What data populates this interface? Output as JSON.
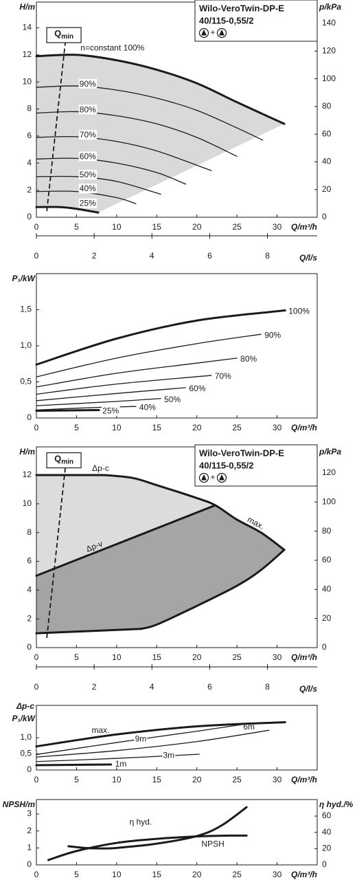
{
  "chart_data": [
    {
      "type": "line",
      "title": [
        "Wilo-VeroTwin-DP-E",
        "40/115-0,55/2"
      ],
      "symbol_joiner": "+",
      "xlabel": "Q/m³/h",
      "ylabel": "H/m",
      "y2label": "p/kPa",
      "xlim": [
        0,
        35
      ],
      "xticks": [
        0,
        5,
        10,
        15,
        20,
        25,
        30
      ],
      "ylim": [
        0,
        15.9
      ],
      "yticks": [
        0,
        2,
        4,
        6,
        8,
        10,
        12,
        14
      ],
      "y2lim": [
        0,
        155.4
      ],
      "y2ticks": [
        0,
        20,
        40,
        60,
        80,
        100,
        120,
        140
      ],
      "shade_color": "#d9d9d9",
      "qmin": {
        "label": "Q",
        "label_sub": "min",
        "x": [
          1.3,
          3.6
        ],
        "values": [
          0.45,
          12.9
        ]
      },
      "series": [
        {
          "name": "n=constant 100%",
          "color": "#1a1a1a",
          "line_width": 3,
          "x": [
            0,
            5,
            10,
            15,
            20,
            25,
            30.9
          ],
          "values": [
            11.9,
            12.0,
            11.6,
            10.9,
            9.9,
            8.5,
            6.9
          ]
        },
        {
          "name": "90%",
          "color": "#1a1a1a",
          "line_width": 1.3,
          "x": [
            0,
            5,
            10,
            15,
            20,
            25,
            28.2
          ],
          "values": [
            9.6,
            9.7,
            9.4,
            8.8,
            7.9,
            6.6,
            5.7
          ]
        },
        {
          "name": "80%",
          "color": "#1a1a1a",
          "line_width": 1.3,
          "x": [
            0,
            5,
            10,
            15,
            20,
            25
          ],
          "values": [
            7.7,
            7.8,
            7.5,
            6.9,
            5.9,
            4.5
          ]
        },
        {
          "name": "70%",
          "color": "#1a1a1a",
          "line_width": 1.3,
          "x": [
            0,
            5,
            10,
            15,
            21.8
          ],
          "values": [
            5.9,
            5.95,
            5.6,
            4.9,
            3.45
          ]
        },
        {
          "name": "60%",
          "color": "#1a1a1a",
          "line_width": 1.3,
          "x": [
            0,
            5,
            10,
            15,
            18.6
          ],
          "values": [
            4.3,
            4.35,
            4.0,
            3.3,
            2.45
          ]
        },
        {
          "name": "50%",
          "color": "#1a1a1a",
          "line_width": 1.3,
          "x": [
            0,
            5,
            10,
            15.5
          ],
          "values": [
            3.0,
            3.0,
            2.65,
            1.7
          ]
        },
        {
          "name": "40%",
          "color": "#1a1a1a",
          "line_width": 1.3,
          "x": [
            0,
            5,
            10,
            12.4
          ],
          "values": [
            1.9,
            1.9,
            1.45,
            1.0
          ]
        },
        {
          "name": "25%",
          "color": "#1a1a1a",
          "line_width": 3,
          "x": [
            0,
            3,
            5,
            7.7
          ],
          "values": [
            0.75,
            0.75,
            0.62,
            0.35
          ]
        }
      ]
    },
    {
      "type": "axis",
      "xlabel": "Q/l/s",
      "xlim": [
        0,
        9.722
      ],
      "xticks": [
        0,
        2,
        4,
        6,
        8
      ]
    },
    {
      "type": "line",
      "xlabel": "Q/m³/h",
      "ylabel": "P₁/kW",
      "xlim": [
        0,
        35
      ],
      "xticks": [
        0,
        5,
        10,
        15,
        20,
        25,
        30
      ],
      "ylim": [
        0,
        2.0
      ],
      "yticks": [
        0,
        {
          "value": 0.5,
          "label": "0,5"
        },
        {
          "value": 1,
          "label": "1,0"
        },
        {
          "value": 1.5,
          "label": "1,5"
        }
      ],
      "series": [
        {
          "name": "100%",
          "color": "#1a1a1a",
          "line_width": 3,
          "x": [
            0,
            10,
            20,
            31
          ],
          "values": [
            0.74,
            1.1,
            1.35,
            1.49
          ]
        },
        {
          "name": "90%",
          "color": "#1a1a1a",
          "line_width": 1.3,
          "x": [
            0,
            10,
            20,
            28
          ],
          "values": [
            0.57,
            0.83,
            1.03,
            1.16
          ]
        },
        {
          "name": "80%",
          "color": "#1a1a1a",
          "line_width": 1.3,
          "x": [
            0,
            10,
            20,
            25
          ],
          "values": [
            0.43,
            0.62,
            0.76,
            0.83
          ]
        },
        {
          "name": "70%",
          "color": "#1a1a1a",
          "line_width": 1.3,
          "x": [
            0,
            10,
            21.8
          ],
          "values": [
            0.33,
            0.47,
            0.59
          ]
        },
        {
          "name": "60%",
          "color": "#1a1a1a",
          "line_width": 1.3,
          "x": [
            0,
            10,
            18.6
          ],
          "values": [
            0.24,
            0.34,
            0.42
          ]
        },
        {
          "name": "50%",
          "color": "#1a1a1a",
          "line_width": 1.3,
          "x": [
            0,
            10,
            15.5
          ],
          "values": [
            0.17,
            0.23,
            0.27
          ]
        },
        {
          "name": "40%",
          "color": "#1a1a1a",
          "line_width": 1.3,
          "x": [
            0,
            6,
            12.4
          ],
          "values": [
            0.11,
            0.14,
            0.16
          ]
        },
        {
          "name": "25%",
          "color": "#1a1a1a",
          "line_width": 3,
          "x": [
            0,
            7.8
          ],
          "values": [
            0.1,
            0.11
          ]
        }
      ]
    },
    {
      "type": "line",
      "title": [
        "Wilo-VeroTwin-DP-E",
        "40/115-0,55/2"
      ],
      "symbol_joiner": "+",
      "xlabel": "Q/m³/h",
      "ylabel": "H/m",
      "y2label": "p/kPa",
      "xlim": [
        0,
        35
      ],
      "xticks": [
        0,
        5,
        10,
        15,
        20,
        25,
        30
      ],
      "ylim": [
        0,
        13.96
      ],
      "yticks": [
        0,
        2,
        4,
        6,
        8,
        10,
        12
      ],
      "y2lim": [
        0,
        137.9
      ],
      "y2ticks": [
        0,
        20,
        40,
        60,
        80,
        100,
        120
      ],
      "shade_colors": [
        "#dcdcdc",
        "#a5a5a5"
      ],
      "qmin": {
        "label": "Q",
        "label_sub": "min",
        "x": [
          1.3,
          3.6
        ],
        "values": [
          0.67,
          12.5
        ]
      },
      "series": [
        {
          "name": "Δp-c",
          "color": "#1a1a1a",
          "line_width": 3,
          "x": [
            0,
            8.5
          ],
          "values": [
            12,
            12
          ]
        },
        {
          "name": "Δp-v",
          "color": "#1a1a1a",
          "line_width": 3,
          "x": [
            0,
            22.3
          ],
          "values": [
            5.0,
            9.9
          ]
        },
        {
          "name": "max.",
          "color": "#1a1a1a",
          "line_width": 3,
          "x": [
            8.5,
            12,
            15,
            20,
            22.3,
            25,
            28,
            30.9
          ],
          "values": [
            12,
            11.8,
            11.3,
            10.4,
            9.9,
            8.9,
            8.0,
            6.8
          ]
        },
        {
          "color": "#1a1a1a",
          "line_width": 3,
          "x": [
            30.9,
            28,
            25,
            20,
            15,
            13
          ],
          "values": [
            6.8,
            5.4,
            4.3,
            2.9,
            1.6,
            1.3
          ]
        },
        {
          "color": "#1a1a1a",
          "line_width": 3,
          "x": [
            0,
            13
          ],
          "values": [
            1.0,
            1.3
          ]
        }
      ]
    },
    {
      "type": "axis",
      "xlabel": "Q/l/s",
      "xlim": [
        0,
        9.722
      ],
      "xticks": [
        0,
        2,
        4,
        6,
        8
      ]
    },
    {
      "type": "line",
      "title": "Δp-c",
      "xlabel": "Q/m³/h",
      "ylabel": "P₁/kW",
      "xlim": [
        0,
        35
      ],
      "xticks": [
        0,
        5,
        10,
        15,
        20,
        25,
        30
      ],
      "ylim": [
        0,
        2.0
      ],
      "yticks": [
        0,
        {
          "value": 0.5,
          "label": "0,5"
        },
        {
          "value": 1,
          "label": "1,0"
        }
      ],
      "series": [
        {
          "name": "max.",
          "color": "#1a1a1a",
          "line_width": 3,
          "x": [
            0,
            10,
            20,
            31
          ],
          "values": [
            0.73,
            1.1,
            1.35,
            1.48
          ]
        },
        {
          "name": "9m",
          "color": "#1a1a1a",
          "line_width": 1.3,
          "x": [
            0,
            10,
            20,
            26
          ],
          "values": [
            0.48,
            0.85,
            1.2,
            1.42
          ]
        },
        {
          "name": "6m",
          "color": "#1a1a1a",
          "line_width": 1.3,
          "x": [
            0,
            10,
            20,
            29
          ],
          "values": [
            0.4,
            0.6,
            0.88,
            1.23
          ]
        },
        {
          "name": "3m",
          "color": "#1a1a1a",
          "line_width": 1.3,
          "x": [
            0,
            10,
            20.3
          ],
          "values": [
            0.26,
            0.36,
            0.49
          ]
        },
        {
          "name": "1m",
          "color": "#1a1a1a",
          "line_width": 3,
          "x": [
            0,
            9.3
          ],
          "values": [
            0.15,
            0.17
          ]
        }
      ]
    },
    {
      "type": "line",
      "xlabel": "Q/m³/h",
      "ylabel": "NPSH/m",
      "y2label": "η hyd./%",
      "xlim": [
        0,
        35
      ],
      "xticks": [
        0,
        5,
        10,
        15,
        20,
        25,
        30
      ],
      "ylim": [
        0,
        3.85
      ],
      "yticks": [
        0,
        1,
        2,
        3
      ],
      "y2lim": [
        0,
        80.3
      ],
      "y2ticks": [
        0,
        20,
        40,
        60
      ],
      "series": [
        {
          "name": "NPSH",
          "color": "#1a1a1a",
          "line_width": 3,
          "x": [
            4,
            6,
            8,
            10,
            15,
            20,
            23,
            26.2
          ],
          "values": [
            1.1,
            1.0,
            0.97,
            1.0,
            1.25,
            1.7,
            2.3,
            3.4
          ]
        },
        {
          "name": "η hyd.",
          "axis": "y2",
          "color": "#1a1a1a",
          "line_width": 3,
          "x": [
            1.5,
            5,
            10,
            15,
            20,
            24,
            26.2
          ],
          "values": [
            6,
            17,
            27,
            32,
            35,
            36,
            36
          ]
        }
      ]
    }
  ]
}
